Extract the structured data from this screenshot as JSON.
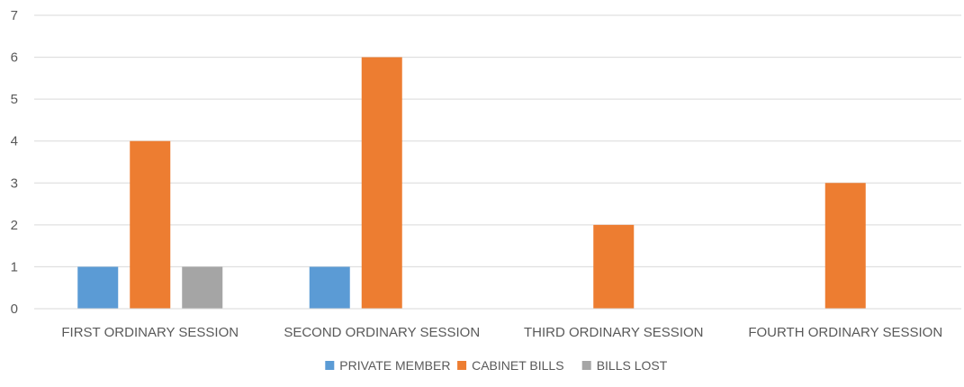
{
  "chart_data": {
    "type": "bar",
    "categories": [
      "FIRST ORDINARY SESSION",
      "SECOND ORDINARY SESSION",
      "THIRD ORDINARY SESSION",
      "FOURTH ORDINARY SESSION"
    ],
    "series": [
      {
        "name": "PRIVATE MEMBER",
        "color": "#5b9bd5",
        "values": [
          1,
          1,
          0,
          0
        ]
      },
      {
        "name": "CABINET BILLS",
        "color": "#ed7d31",
        "values": [
          4,
          6,
          2,
          3
        ]
      },
      {
        "name": "BILLS LOST",
        "color": "#a5a5a5",
        "values": [
          1,
          0,
          0,
          0
        ]
      }
    ],
    "ylim": [
      0,
      7
    ],
    "yticks": [
      0,
      1,
      2,
      3,
      4,
      5,
      6,
      7
    ],
    "grid": true,
    "legend": "bottom"
  }
}
